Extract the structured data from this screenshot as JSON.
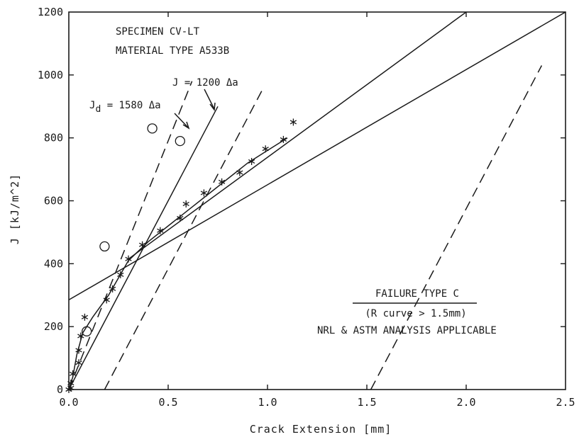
{
  "chart_data": {
    "type": "scatter",
    "xlabel": "Crack Extension   [mm]",
    "ylabel": "J  [kJ/m^2]",
    "xlim": [
      0,
      2.5
    ],
    "ylim": [
      0,
      1200
    ],
    "x_ticks": [
      "0.0",
      "0.5",
      "1.0",
      "1.5",
      "2.0",
      "2.5"
    ],
    "y_ticks": [
      "0",
      "200",
      "400",
      "600",
      "800",
      "1000",
      "1200"
    ],
    "grid": false,
    "annotations": {
      "specimen": "SPECIMEN CV-LT",
      "material": "MATERIAL TYPE  A533B",
      "j_line": "J = 1200 Δa",
      "jd_prefix": "J",
      "jd_sub": "d",
      "jd_rest": " = 1580 Δa",
      "failure_type": "FAILURE TYPE C",
      "r_curve": "(R curve > 1.5mm)",
      "analysis": "NRL & ASTM ANALYSIS APPLICABLE"
    },
    "series": [
      {
        "marker": "asterisk",
        "points": [
          [
            0.0,
            0
          ],
          [
            0.01,
            5
          ],
          [
            0.01,
            20
          ],
          [
            0.02,
            50
          ],
          [
            0.05,
            85
          ],
          [
            0.05,
            125
          ],
          [
            0.06,
            170
          ],
          [
            0.08,
            230
          ],
          [
            0.19,
            285
          ],
          [
            0.22,
            320
          ],
          [
            0.26,
            365
          ],
          [
            0.3,
            415
          ],
          [
            0.37,
            460
          ],
          [
            0.46,
            505
          ],
          [
            0.56,
            545
          ],
          [
            0.59,
            590
          ],
          [
            0.68,
            625
          ],
          [
            0.77,
            660
          ],
          [
            0.86,
            690
          ],
          [
            0.92,
            725
          ],
          [
            0.99,
            765
          ],
          [
            1.08,
            795
          ],
          [
            1.13,
            850
          ]
        ]
      },
      {
        "marker": "circle",
        "points": [
          [
            0.09,
            185
          ],
          [
            0.18,
            455
          ],
          [
            0.42,
            830
          ],
          [
            0.56,
            790
          ]
        ]
      },
      {
        "style": "solid",
        "points": [
          [
            0.0,
            0
          ],
          [
            0.02,
            40
          ],
          [
            0.04,
            110
          ],
          [
            0.07,
            180
          ],
          [
            0.12,
            230
          ],
          [
            0.2,
            300
          ],
          [
            0.3,
            410
          ],
          [
            0.4,
            470
          ],
          [
            0.5,
            520
          ],
          [
            0.6,
            570
          ],
          [
            0.7,
            620
          ],
          [
            0.8,
            670
          ],
          [
            0.9,
            720
          ],
          [
            1.0,
            760
          ],
          [
            1.1,
            800
          ]
        ]
      },
      {
        "style": "solid",
        "points": [
          [
            0.0,
            285
          ],
          [
            2.5,
            1200
          ]
        ]
      },
      {
        "style": "solid",
        "points": [
          [
            0.3,
            415
          ],
          [
            2.0,
            1200
          ]
        ]
      },
      {
        "style": "solid",
        "points": [
          [
            0.0,
            0
          ],
          [
            0.75,
            900
          ]
        ]
      },
      {
        "style": "dashed",
        "points": [
          [
            0.0,
            0
          ],
          [
            0.62,
            980
          ]
        ]
      },
      {
        "style": "dashed",
        "points": [
          [
            0.18,
            0
          ],
          [
            0.98,
            960
          ]
        ]
      },
      {
        "style": "dashed",
        "points": [
          [
            1.52,
            0
          ],
          [
            2.38,
            1030
          ]
        ]
      }
    ]
  }
}
